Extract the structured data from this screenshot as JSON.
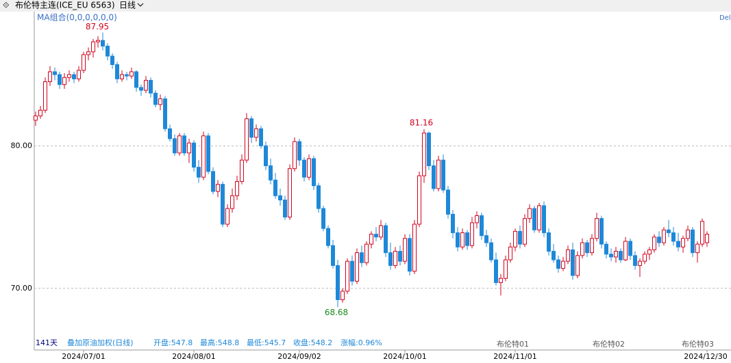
{
  "chart_data": {
    "type": "candlestick",
    "title": "布伦特主连(ICE_EU 6563)",
    "period": "日线",
    "indicator": "MA组合(0,0,0,0,0,0)",
    "corner_label": "Del",
    "up_color": "#d0021b",
    "down_color": "#1e88d8",
    "grid": true,
    "ylim": [
      65.67,
      89.42
    ],
    "yticks": [
      {
        "value": 70,
        "label": "70.00"
      },
      {
        "value": 80,
        "label": "80.00"
      }
    ],
    "categories": [
      null,
      null,
      null,
      null,
      null,
      null,
      null,
      null,
      null,
      null,
      "2024/07/01",
      null,
      null,
      null,
      null,
      null,
      null,
      null,
      null,
      null,
      null,
      null,
      null,
      null,
      null,
      null,
      null,
      null,
      null,
      null,
      null,
      null,
      null,
      "2024/08/01",
      null,
      null,
      null,
      null,
      null,
      null,
      null,
      null,
      null,
      null,
      null,
      null,
      null,
      null,
      null,
      null,
      null,
      null,
      null,
      null,
      null,
      "2024/09/02",
      null,
      null,
      null,
      null,
      null,
      null,
      null,
      null,
      null,
      null,
      null,
      null,
      null,
      null,
      null,
      null,
      null,
      null,
      null,
      null,
      null,
      "2024/10/01",
      null,
      null,
      null,
      null,
      null,
      null,
      null,
      null,
      null,
      null,
      null,
      null,
      null,
      null,
      null,
      null,
      null,
      null,
      null,
      null,
      null,
      null,
      "2024/11/01",
      null,
      null,
      null,
      null,
      null,
      null,
      null,
      null,
      null,
      null,
      null,
      null,
      null,
      null,
      null,
      null,
      null,
      null,
      null,
      null,
      null,
      null,
      null,
      null,
      null,
      null,
      null,
      null,
      null,
      null,
      null,
      null,
      null,
      null,
      null,
      null,
      null,
      null,
      null,
      "2024/12/30"
    ],
    "candles": [
      [
        81.8,
        82.4,
        81.4,
        82.1
      ],
      [
        82.1,
        82.8,
        81.9,
        82.5
      ],
      [
        82.5,
        84.8,
        82.3,
        84.5
      ],
      [
        84.5,
        85.6,
        84.2,
        85.2
      ],
      [
        85.2,
        85.5,
        84.6,
        85.0
      ],
      [
        85.0,
        85.2,
        84.0,
        84.3
      ],
      [
        84.3,
        85.1,
        84.0,
        84.8
      ],
      [
        84.8,
        85.3,
        84.5,
        85.0
      ],
      [
        85.0,
        85.2,
        84.4,
        84.7
      ],
      [
        84.7,
        85.6,
        84.5,
        85.3
      ],
      [
        85.3,
        86.6,
        85.1,
        86.4
      ],
      [
        86.4,
        86.9,
        86.0,
        86.6
      ],
      [
        86.6,
        87.5,
        86.2,
        87.3
      ],
      [
        87.3,
        87.7,
        86.9,
        87.4
      ],
      [
        87.4,
        87.95,
        86.7,
        87.0
      ],
      [
        87.0,
        87.2,
        86.0,
        86.3
      ],
      [
        86.3,
        86.5,
        85.4,
        85.7
      ],
      [
        85.7,
        85.9,
        84.4,
        84.7
      ],
      [
        84.7,
        85.3,
        84.5,
        85.0
      ],
      [
        85.0,
        85.2,
        84.6,
        84.9
      ],
      [
        84.9,
        85.5,
        84.7,
        85.2
      ],
      [
        85.2,
        85.3,
        83.8,
        84.1
      ],
      [
        84.1,
        84.3,
        83.5,
        83.9
      ],
      [
        83.9,
        84.9,
        83.7,
        84.6
      ],
      [
        84.6,
        84.8,
        83.4,
        83.7
      ],
      [
        83.7,
        83.9,
        82.7,
        82.9
      ],
      [
        82.9,
        83.6,
        82.5,
        83.3
      ],
      [
        83.3,
        83.5,
        81.0,
        81.2
      ],
      [
        81.2,
        81.5,
        80.3,
        80.5
      ],
      [
        80.5,
        80.8,
        79.3,
        79.5
      ],
      [
        79.5,
        80.9,
        79.3,
        80.7
      ],
      [
        80.7,
        80.9,
        79.3,
        79.5
      ],
      [
        79.5,
        80.5,
        78.8,
        80.2
      ],
      [
        80.2,
        80.4,
        78.2,
        78.5
      ],
      [
        78.5,
        79.0,
        77.4,
        77.8
      ],
      [
        77.8,
        81.0,
        77.6,
        80.7
      ],
      [
        80.7,
        80.9,
        78.0,
        78.2
      ],
      [
        78.2,
        78.5,
        76.6,
        76.8
      ],
      [
        76.8,
        77.6,
        76.4,
        77.3
      ],
      [
        77.3,
        77.5,
        74.3,
        74.5
      ],
      [
        74.5,
        75.9,
        74.3,
        75.6
      ],
      [
        75.6,
        77.0,
        75.3,
        76.5
      ],
      [
        76.5,
        77.9,
        76.2,
        77.5
      ],
      [
        77.5,
        79.4,
        77.3,
        79.0
      ],
      [
        79.0,
        82.3,
        78.8,
        81.9
      ],
      [
        81.9,
        82.1,
        80.2,
        80.6
      ],
      [
        80.6,
        81.5,
        80.3,
        81.2
      ],
      [
        81.2,
        81.4,
        79.8,
        80.0
      ],
      [
        80.0,
        80.3,
        78.3,
        78.6
      ],
      [
        78.6,
        79.1,
        77.3,
        77.6
      ],
      [
        77.6,
        78.1,
        76.3,
        76.5
      ],
      [
        76.5,
        77.0,
        75.8,
        76.2
      ],
      [
        76.2,
        76.5,
        74.8,
        75.0
      ],
      [
        75.0,
        78.7,
        74.8,
        78.4
      ],
      [
        78.4,
        80.6,
        78.2,
        80.3
      ],
      [
        80.3,
        80.5,
        78.6,
        79.0
      ],
      [
        79.0,
        79.2,
        77.5,
        77.8
      ],
      [
        77.8,
        79.4,
        77.6,
        79.1
      ],
      [
        79.1,
        79.3,
        76.9,
        77.2
      ],
      [
        77.2,
        77.4,
        75.3,
        75.6
      ],
      [
        75.6,
        75.8,
        74.0,
        74.2
      ],
      [
        74.2,
        74.4,
        72.8,
        73.0
      ],
      [
        73.0,
        73.4,
        71.4,
        71.6
      ],
      [
        71.6,
        72.0,
        68.68,
        69.2
      ],
      [
        69.2,
        70.0,
        69.0,
        69.8
      ],
      [
        69.8,
        72.1,
        69.6,
        71.9
      ],
      [
        71.9,
        72.3,
        70.2,
        70.5
      ],
      [
        70.5,
        72.8,
        70.3,
        72.5
      ],
      [
        72.5,
        73.0,
        71.5,
        71.8
      ],
      [
        71.8,
        73.3,
        71.6,
        73.1
      ],
      [
        73.1,
        74.0,
        72.8,
        73.8
      ],
      [
        73.8,
        74.3,
        73.3,
        73.6
      ],
      [
        73.6,
        74.8,
        73.4,
        74.4
      ],
      [
        74.4,
        74.6,
        72.2,
        72.5
      ],
      [
        72.5,
        73.2,
        71.3,
        71.6
      ],
      [
        71.6,
        72.9,
        71.4,
        72.6
      ],
      [
        72.6,
        73.0,
        71.6,
        71.9
      ],
      [
        71.9,
        73.8,
        71.7,
        73.5
      ],
      [
        73.5,
        73.8,
        70.9,
        71.2
      ],
      [
        71.2,
        74.8,
        71.0,
        74.5
      ],
      [
        74.5,
        78.2,
        74.3,
        77.9
      ],
      [
        77.9,
        81.16,
        77.4,
        80.9
      ],
      [
        80.9,
        81.0,
        78.3,
        78.6
      ],
      [
        78.6,
        79.0,
        76.8,
        77.0
      ],
      [
        77.0,
        79.3,
        76.8,
        79.0
      ],
      [
        79.0,
        79.4,
        76.7,
        76.9
      ],
      [
        76.9,
        77.2,
        74.9,
        75.2
      ],
      [
        75.2,
        75.5,
        73.5,
        73.9
      ],
      [
        73.9,
        74.3,
        72.6,
        72.9
      ],
      [
        72.9,
        74.2,
        72.7,
        73.9
      ],
      [
        73.9,
        74.1,
        72.7,
        73.0
      ],
      [
        73.0,
        75.0,
        72.8,
        74.6
      ],
      [
        74.6,
        75.4,
        74.2,
        75.1
      ],
      [
        75.1,
        75.3,
        73.4,
        73.7
      ],
      [
        73.7,
        74.1,
        72.9,
        73.2
      ],
      [
        73.2,
        73.5,
        71.8,
        72.0
      ],
      [
        72.0,
        72.5,
        70.2,
        70.4
      ],
      [
        70.4,
        71.0,
        69.5,
        70.7
      ],
      [
        70.7,
        72.3,
        70.5,
        72.0
      ],
      [
        72.0,
        73.2,
        71.8,
        72.9
      ],
      [
        72.9,
        74.2,
        72.6,
        74.0
      ],
      [
        74.0,
        74.4,
        72.8,
        73.1
      ],
      [
        73.1,
        75.2,
        72.9,
        74.9
      ],
      [
        74.9,
        75.9,
        74.6,
        75.6
      ],
      [
        75.6,
        75.8,
        73.9,
        74.1
      ],
      [
        74.1,
        76.0,
        73.9,
        75.8
      ],
      [
        75.8,
        76.1,
        73.6,
        73.9
      ],
      [
        73.9,
        74.2,
        72.3,
        72.6
      ],
      [
        72.6,
        73.1,
        71.8,
        72.0
      ],
      [
        72.0,
        72.3,
        71.1,
        71.4
      ],
      [
        71.4,
        72.2,
        71.2,
        71.9
      ],
      [
        71.9,
        73.0,
        71.7,
        72.7
      ],
      [
        72.7,
        73.2,
        70.6,
        70.9
      ],
      [
        70.9,
        72.6,
        70.7,
        72.3
      ],
      [
        72.3,
        73.5,
        72.1,
        73.2
      ],
      [
        73.2,
        73.4,
        72.2,
        72.5
      ],
      [
        72.5,
        73.8,
        72.3,
        73.5
      ],
      [
        73.5,
        75.3,
        73.3,
        74.9
      ],
      [
        74.9,
        75.1,
        72.8,
        73.1
      ],
      [
        73.1,
        73.3,
        72.1,
        72.4
      ],
      [
        72.4,
        72.8,
        71.9,
        72.2
      ],
      [
        72.2,
        72.9,
        71.8,
        72.6
      ],
      [
        72.6,
        72.8,
        71.8,
        72.0
      ],
      [
        72.0,
        73.6,
        71.9,
        73.3
      ],
      [
        73.3,
        73.5,
        72.0,
        72.3
      ],
      [
        72.3,
        72.6,
        71.3,
        71.6
      ],
      [
        71.6,
        72.1,
        70.8,
        71.9
      ],
      [
        71.9,
        72.6,
        71.7,
        72.4
      ],
      [
        72.4,
        72.9,
        72.0,
        72.7
      ],
      [
        72.7,
        73.8,
        72.5,
        73.6
      ],
      [
        73.6,
        74.0,
        72.9,
        73.2
      ],
      [
        73.2,
        74.3,
        73.0,
        74.1
      ],
      [
        74.1,
        74.8,
        73.6,
        73.9
      ],
      [
        73.9,
        74.3,
        73.0,
        73.3
      ],
      [
        73.3,
        73.9,
        72.6,
        72.9
      ],
      [
        72.9,
        73.7,
        72.5,
        73.5
      ],
      [
        73.5,
        74.4,
        73.3,
        74.1
      ],
      [
        74.1,
        74.3,
        72.2,
        72.5
      ],
      [
        72.5,
        73.3,
        71.8,
        73.1
      ],
      [
        73.1,
        74.9,
        72.9,
        74.7
      ],
      [
        73.2,
        74.0,
        72.9,
        73.8
      ]
    ],
    "contract_labels": [
      "布伦特01",
      "布伦特02",
      "布伦特03"
    ],
    "footer": [
      "141天",
      "叠加原油加权(日线)",
      "开盘:547.8",
      "最高:548.8",
      "最低:545.7",
      "收盘:548.2",
      "涨幅:0.96%"
    ]
  }
}
